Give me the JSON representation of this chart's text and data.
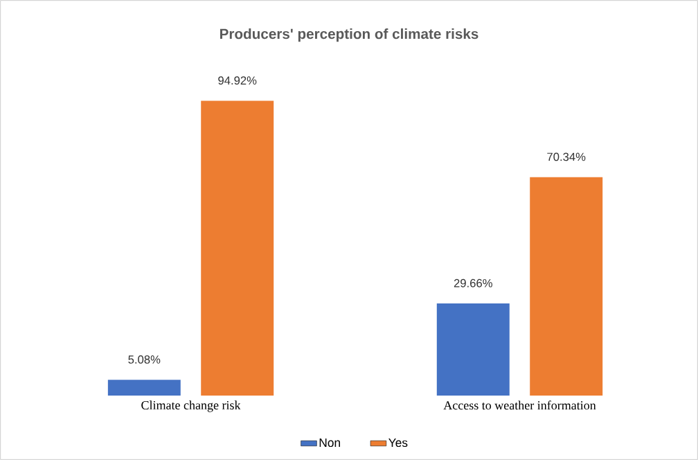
{
  "chart_data": {
    "type": "bar",
    "title": "Producers' perception of climate risks",
    "categories": [
      "Climate change risk",
      "Access to weather information"
    ],
    "series": [
      {
        "name": "Non",
        "color": "#4472c4",
        "values": [
          5.08,
          29.66
        ],
        "value_labels": [
          "5.08%",
          "29.66%"
        ]
      },
      {
        "name": "Yes",
        "color": "#ed7d31",
        "values": [
          94.92,
          70.34
        ],
        "value_labels": [
          "94.92%",
          "70.34%"
        ]
      }
    ],
    "legend": "bottom"
  }
}
